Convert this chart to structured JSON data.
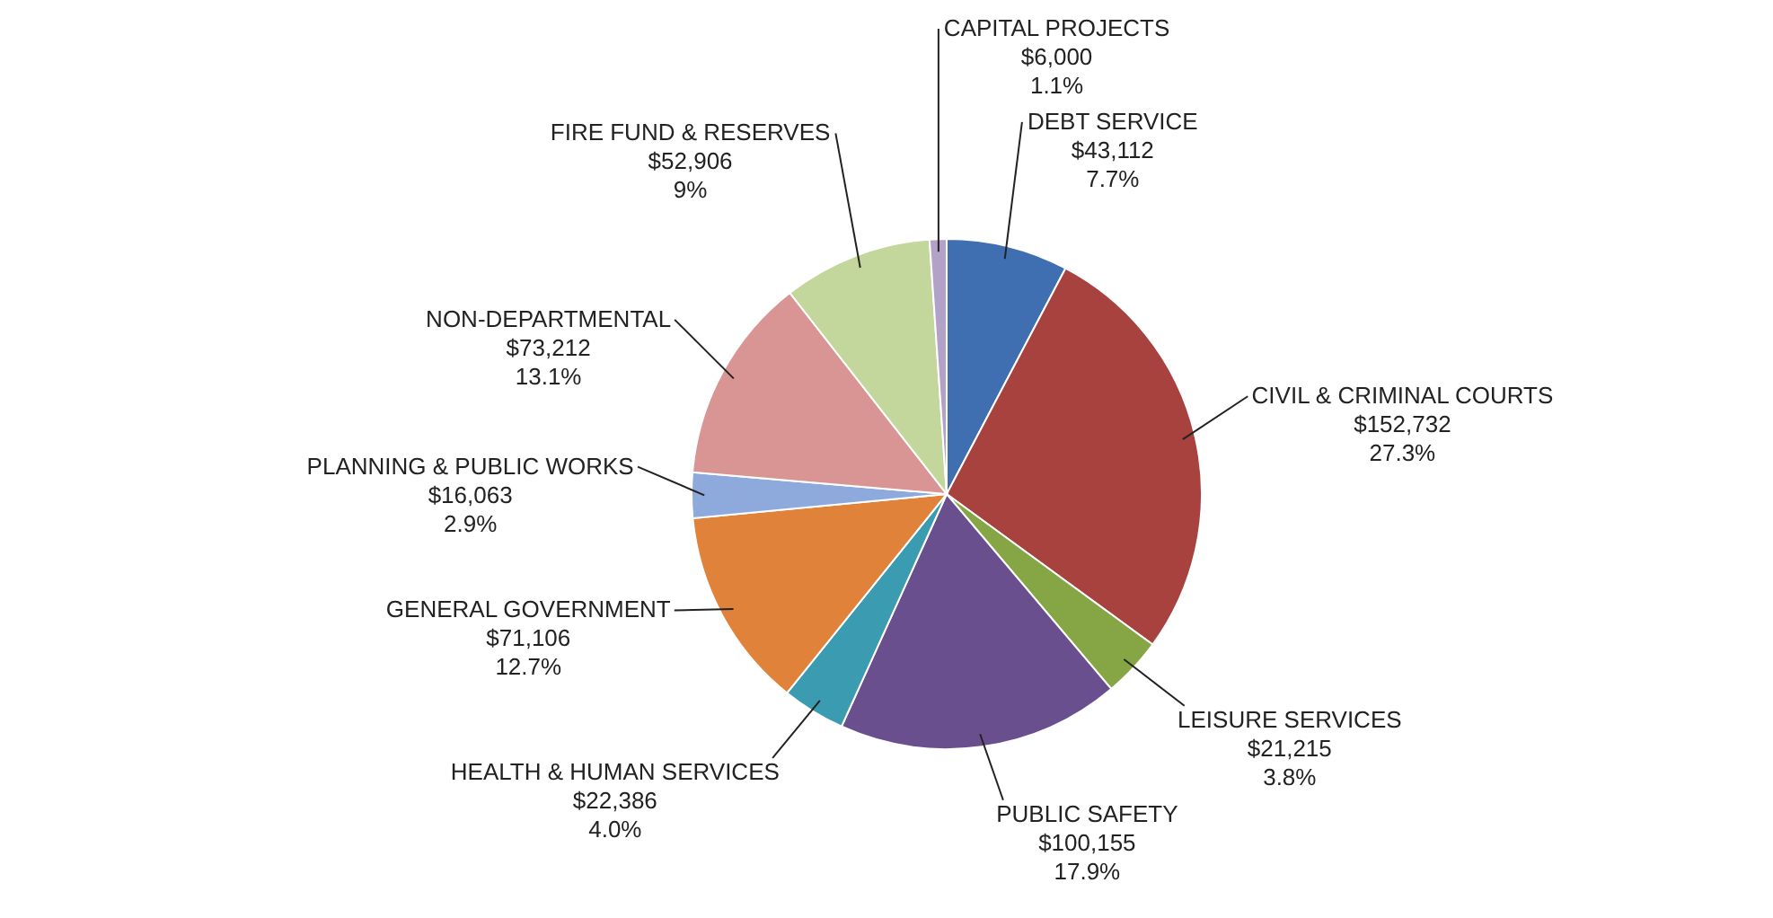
{
  "chart_data": {
    "type": "pie",
    "categories": [
      "DEBT SERVICE",
      "CIVIL & CRIMINAL COURTS",
      "LEISURE SERVICES",
      "PUBLIC SAFETY",
      "HEALTH & HUMAN SERVICES",
      "GENERAL GOVERNMENT",
      "PLANNING & PUBLIC WORKS",
      "NON-DEPARTMENTAL",
      "FIRE FUND & RESERVES",
      "CAPITAL PROJECTS"
    ],
    "values": [
      43112,
      152732,
      21215,
      100155,
      22386,
      71106,
      16063,
      73212,
      52906,
      6000
    ],
    "value_labels": [
      "$43,112\n7.7%",
      "$152,732\n27.3%",
      "$21,215\n3.8%",
      "$100,155\n17.9%",
      "$22,386\n4.0%",
      "$71,106\n12.7%",
      "$16,063\n2.9%",
      "$73,212\n13.1%",
      "$52,906\n9%",
      "$6,000\n1.1%"
    ],
    "colors": [
      "#3f6fb0",
      "#a8423f",
      "#86a544",
      "#6a4f8f",
      "#3b9bb0",
      "#e0823a",
      "#8ea9db",
      "#d99594",
      "#c3d69b",
      "#b3a2c7"
    ]
  }
}
